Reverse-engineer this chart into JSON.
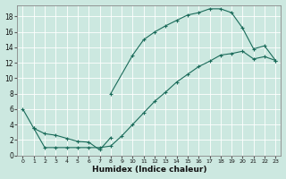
{
  "xlabel": "Humidex (Indice chaleur)",
  "bg_color": "#cce8e0",
  "line_color": "#1a6b5a",
  "grid_color": "#b0d8cf",
  "xlim": [
    -0.5,
    23.5
  ],
  "ylim": [
    0,
    19.5
  ],
  "xticks": [
    0,
    1,
    2,
    3,
    4,
    5,
    6,
    7,
    8,
    9,
    10,
    11,
    12,
    13,
    14,
    15,
    16,
    17,
    18,
    19,
    20,
    21,
    22,
    23
  ],
  "yticks": [
    0,
    2,
    4,
    6,
    8,
    10,
    12,
    14,
    16,
    18
  ],
  "curve1_x": [
    0,
    1,
    2,
    3,
    4,
    5,
    6,
    7,
    8
  ],
  "curve1_y": [
    6,
    3.5,
    2.8,
    2.6,
    2.2,
    1.8,
    1.7,
    0.7,
    2.3
  ],
  "curve2_x": [
    8,
    10,
    11,
    12,
    13,
    14,
    15,
    16,
    17,
    18,
    19,
    20,
    21,
    22,
    23
  ],
  "curve2_y": [
    8.0,
    13.0,
    15.0,
    16.0,
    16.8,
    17.5,
    18.2,
    18.5,
    19.0,
    19.0,
    18.5,
    16.5,
    13.8,
    14.2,
    12.3
  ],
  "curve3_x": [
    1,
    2,
    3,
    4,
    5,
    6,
    7,
    8,
    9,
    10,
    11,
    12,
    13,
    14,
    15,
    16,
    17,
    18,
    19,
    20,
    21,
    22,
    23
  ],
  "curve3_y": [
    3.5,
    1.0,
    1.0,
    1.0,
    1.0,
    1.0,
    1.0,
    1.2,
    2.5,
    4.0,
    5.5,
    7.0,
    8.2,
    9.5,
    10.5,
    11.5,
    12.2,
    13.0,
    13.2,
    13.5,
    12.5,
    12.8,
    12.3
  ]
}
